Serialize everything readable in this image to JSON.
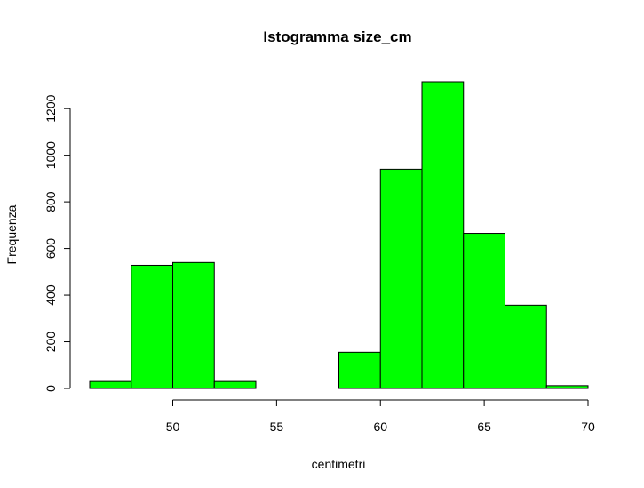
{
  "chart_data": {
    "type": "bar",
    "subtype": "histogram",
    "title": "Istogramma size_cm",
    "xlabel": "centimetri",
    "ylabel": "Frequenza",
    "bar_color": "#00ff00",
    "border_color": "#000000",
    "bin_edges": [
      46,
      48,
      50,
      52,
      54,
      56,
      58,
      60,
      62,
      64,
      66,
      68,
      70
    ],
    "counts": [
      30,
      528,
      540,
      30,
      0,
      0,
      155,
      940,
      1315,
      665,
      357,
      12
    ],
    "xlim": [
      46,
      70
    ],
    "ylim": [
      0,
      1315
    ],
    "x_ticks": [
      50,
      55,
      60,
      65,
      70
    ],
    "y_ticks": [
      0,
      200,
      400,
      600,
      800,
      1000,
      1200
    ],
    "grid": false,
    "legend": "none"
  }
}
